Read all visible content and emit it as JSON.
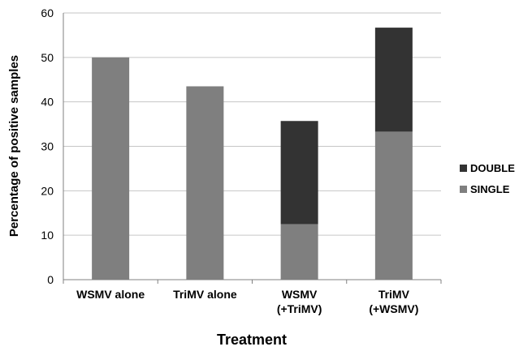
{
  "chart_data": {
    "type": "bar",
    "stacked": true,
    "categories": [
      [
        "WSMV alone"
      ],
      [
        "TriMV alone"
      ],
      [
        "WSMV",
        "(+TriMV)"
      ],
      [
        "TriMV",
        "(+WSMV)"
      ]
    ],
    "series": [
      {
        "name": "SINGLE",
        "color": "#7f7f7f",
        "values": [
          50,
          43.5,
          12.5,
          33.3
        ]
      },
      {
        "name": "DOUBLE",
        "color": "#333333",
        "values": [
          0,
          0,
          23.2,
          23.4
        ]
      }
    ],
    "xlabel": "Treatment",
    "ylabel": "Percentage of positive samples",
    "ylim": [
      0,
      60
    ],
    "yticks": [
      0,
      10,
      20,
      30,
      40,
      50,
      60
    ],
    "grid": true,
    "legend_position": "right",
    "legend_order": [
      "DOUBLE",
      "SINGLE"
    ]
  }
}
